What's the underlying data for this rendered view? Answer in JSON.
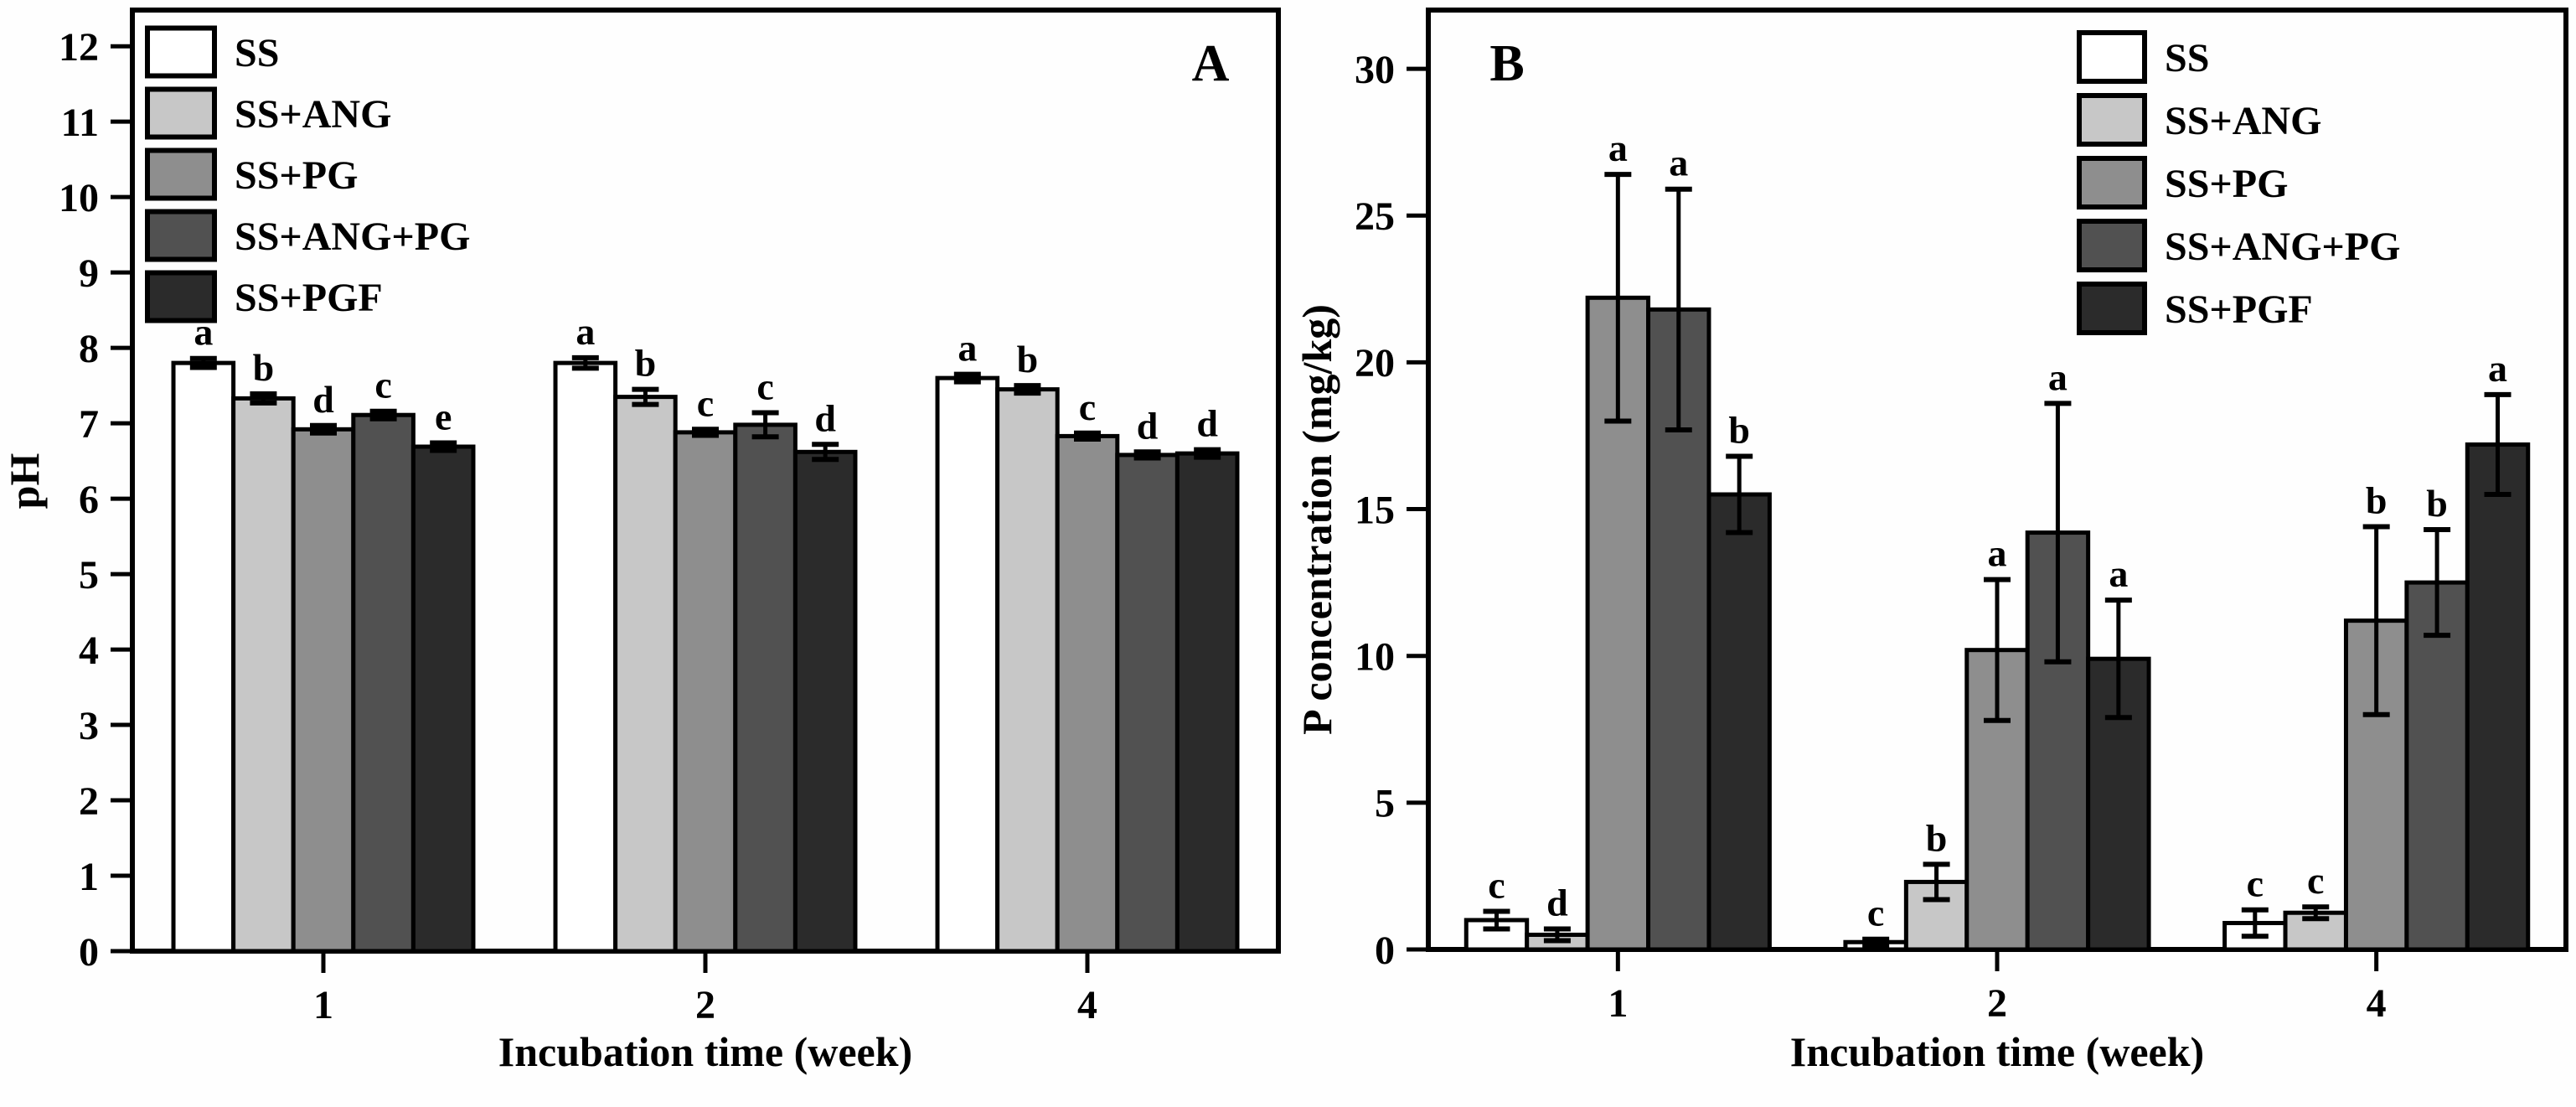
{
  "figure": {
    "background": "#fefefe",
    "frame_color": "#000000"
  },
  "chart_data": [
    {
      "type": "bar",
      "panel_label": "A",
      "ylabel": "pH",
      "xlabel": "Incubation time (week)",
      "categories": [
        "1",
        "2",
        "4"
      ],
      "ylim": [
        0,
        12.48
      ],
      "ytick_max": 12,
      "ytick_step": 1,
      "grid": false,
      "legend_position": "top-left",
      "series": [
        {
          "name": "SS",
          "color": "#ffffff",
          "values": [
            7.8,
            7.8,
            7.6
          ],
          "errors": [
            0.06,
            0.07,
            0.05
          ],
          "letters": [
            "a",
            "a",
            "a"
          ]
        },
        {
          "name": "SS+ANG",
          "color": "#c7c7c7",
          "values": [
            7.33,
            7.35,
            7.45
          ],
          "errors": [
            0.06,
            0.1,
            0.05
          ],
          "letters": [
            "b",
            "b",
            "b"
          ]
        },
        {
          "name": "SS+PG",
          "color": "#8e8e8e",
          "values": [
            6.92,
            6.88,
            6.83
          ],
          "errors": [
            0.05,
            0.04,
            0.04
          ],
          "letters": [
            "d",
            "c",
            "c"
          ]
        },
        {
          "name": "SS+ANG+PG",
          "color": "#515151",
          "values": [
            7.11,
            6.98,
            6.58
          ],
          "errors": [
            0.05,
            0.16,
            0.04
          ],
          "letters": [
            "c",
            "c",
            "d"
          ]
        },
        {
          "name": "SS+PGF",
          "color": "#2b2b2b",
          "values": [
            6.69,
            6.62,
            6.6
          ],
          "errors": [
            0.05,
            0.1,
            0.05
          ],
          "letters": [
            "e",
            "d",
            "d"
          ]
        }
      ]
    },
    {
      "type": "bar",
      "panel_label": "B",
      "ylabel": "P concentration (mg/kg)",
      "xlabel": "Incubation time (week)",
      "categories": [
        "1",
        "2",
        "4"
      ],
      "ylim": [
        0,
        32
      ],
      "ytick_max": 30,
      "ytick_step": 5,
      "grid": false,
      "legend_position": "top-right",
      "series": [
        {
          "name": "SS",
          "color": "#ffffff",
          "values": [
            1.0,
            0.25,
            0.9
          ],
          "errors": [
            0.3,
            0.1,
            0.45
          ],
          "letters": [
            "c",
            "c",
            "c"
          ]
        },
        {
          "name": "SS+ANG",
          "color": "#c7c7c7",
          "values": [
            0.5,
            2.3,
            1.25
          ],
          "errors": [
            0.2,
            0.6,
            0.2
          ],
          "letters": [
            "d",
            "b",
            "c"
          ]
        },
        {
          "name": "SS+PG",
          "color": "#8e8e8e",
          "values": [
            22.2,
            10.2,
            11.2
          ],
          "errors": [
            4.2,
            2.4,
            3.2
          ],
          "letters": [
            "a",
            "a",
            "b"
          ]
        },
        {
          "name": "SS+ANG+PG",
          "color": "#515151",
          "values": [
            21.8,
            14.2,
            12.5
          ],
          "errors": [
            4.1,
            4.4,
            1.8
          ],
          "letters": [
            "a",
            "a",
            "b"
          ]
        },
        {
          "name": "SS+PGF",
          "color": "#2b2b2b",
          "values": [
            15.5,
            9.9,
            17.2
          ],
          "errors": [
            1.3,
            2.0,
            1.7
          ],
          "letters": [
            "b",
            "a",
            "a"
          ]
        }
      ]
    }
  ]
}
